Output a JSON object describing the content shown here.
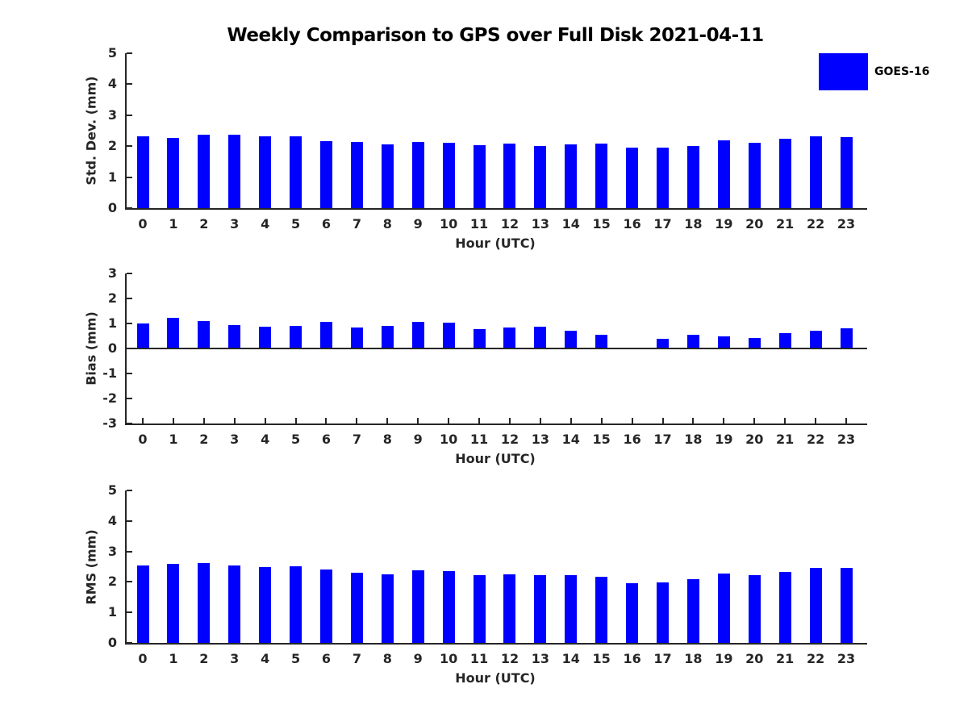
{
  "figure": {
    "title": "Weekly Comparison to GPS over Full Disk 2021-04-11",
    "legend": {
      "label": "GOES-16",
      "swatch_color": "#0000ff"
    }
  },
  "colors": {
    "bar": "#0000ff",
    "axis": "#262626",
    "tick_text": "#262626",
    "title_text": "#000000",
    "background": "#ffffff"
  },
  "chart_data": [
    {
      "type": "bar",
      "panel": "std-dev",
      "title": "",
      "ylabel": "Std. Dev. (mm)",
      "xlabel": "Hour (UTC)",
      "ylim": [
        0,
        5
      ],
      "yticks": [
        0,
        1,
        2,
        3,
        4,
        5
      ],
      "grid": false,
      "legend_position": "northeast-inside",
      "categories": [
        "0",
        "1",
        "2",
        "3",
        "4",
        "5",
        "6",
        "7",
        "8",
        "9",
        "10",
        "11",
        "12",
        "13",
        "14",
        "15",
        "16",
        "17",
        "18",
        "19",
        "20",
        "21",
        "22",
        "23"
      ],
      "series_name": "GOES-16",
      "values": [
        2.33,
        2.27,
        2.38,
        2.38,
        2.33,
        2.33,
        2.17,
        2.14,
        2.06,
        2.14,
        2.11,
        2.03,
        2.08,
        2.01,
        2.06,
        2.08,
        1.95,
        1.95,
        2.0,
        2.2,
        2.12,
        2.23,
        2.33,
        2.29
      ]
    },
    {
      "type": "bar",
      "panel": "bias",
      "title": "",
      "ylabel": "Bias (mm)",
      "xlabel": "Hour (UTC)",
      "ylim": [
        -3,
        3
      ],
      "yticks": [
        -3,
        -2,
        -1,
        0,
        1,
        2,
        3
      ],
      "grid": false,
      "categories": [
        "0",
        "1",
        "2",
        "3",
        "4",
        "5",
        "6",
        "7",
        "8",
        "9",
        "10",
        "11",
        "12",
        "13",
        "14",
        "15",
        "16",
        "17",
        "18",
        "19",
        "20",
        "21",
        "22",
        "23"
      ],
      "series_name": "GOES-16",
      "values": [
        1.01,
        1.24,
        1.09,
        0.95,
        0.86,
        0.89,
        1.05,
        0.83,
        0.89,
        1.05,
        1.03,
        0.78,
        0.84,
        0.88,
        0.72,
        0.55,
        0.0,
        0.4,
        0.54,
        0.5,
        0.42,
        0.6,
        0.72,
        0.82
      ]
    },
    {
      "type": "bar",
      "panel": "rms",
      "title": "",
      "ylabel": "RMS (mm)",
      "xlabel": "Hour (UTC)",
      "ylim": [
        0,
        5
      ],
      "yticks": [
        0,
        1,
        2,
        3,
        4,
        5
      ],
      "grid": false,
      "categories": [
        "0",
        "1",
        "2",
        "3",
        "4",
        "5",
        "6",
        "7",
        "8",
        "9",
        "10",
        "11",
        "12",
        "13",
        "14",
        "15",
        "16",
        "17",
        "18",
        "19",
        "20",
        "21",
        "22",
        "23"
      ],
      "series_name": "GOES-16",
      "values": [
        2.55,
        2.6,
        2.62,
        2.55,
        2.5,
        2.52,
        2.41,
        2.31,
        2.26,
        2.38,
        2.35,
        2.21,
        2.24,
        2.23,
        2.22,
        2.16,
        1.97,
        1.99,
        2.1,
        2.27,
        2.21,
        2.32,
        2.45,
        2.45
      ]
    }
  ]
}
